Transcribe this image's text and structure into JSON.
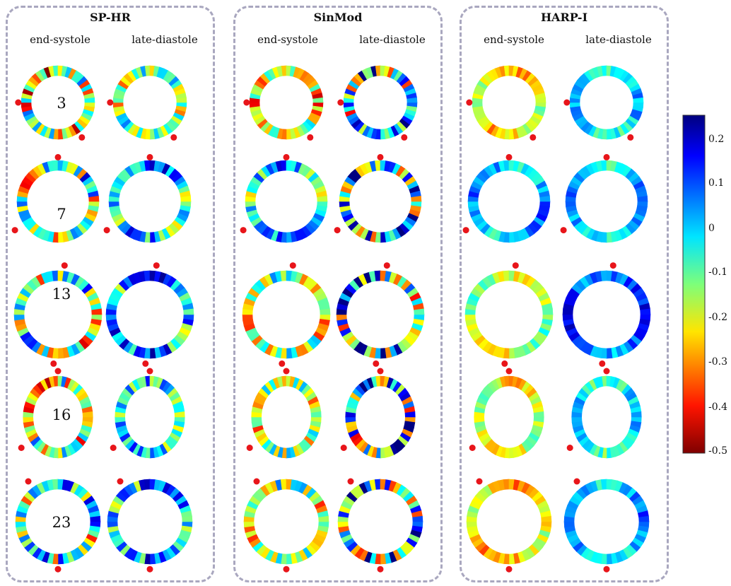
{
  "panels": [
    {
      "title": "SP-HR",
      "columns": [
        "end-systole",
        "late-diastole"
      ]
    },
    {
      "title": "SinMod",
      "columns": [
        "end-systole",
        "late-diastole"
      ]
    },
    {
      "title": "HARP-I",
      "columns": [
        "end-systole",
        "late-diastole"
      ]
    }
  ],
  "slices": [
    "3",
    "7",
    "13",
    "16",
    "23"
  ],
  "colorbar": {
    "ticks": [
      "0.2",
      "0.1",
      "0",
      "-0.1",
      "-0.2",
      "-0.3",
      "-0.4",
      "-0.5"
    ],
    "range": [
      -0.5,
      0.25
    ],
    "colormap": "jet",
    "reversed": true
  },
  "colors": {
    "panel_border": "#a9a7bf",
    "marker": "#e8151a"
  }
}
